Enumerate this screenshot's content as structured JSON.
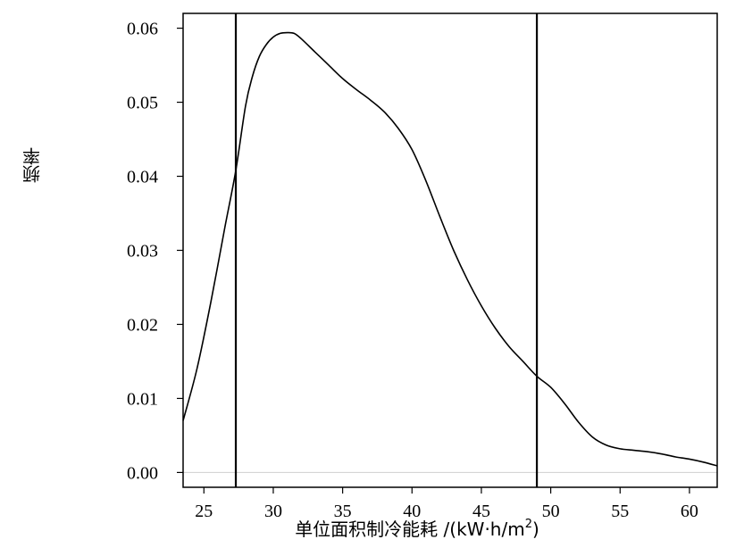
{
  "chart_data": {
    "type": "line",
    "xlabel": "单位面积制冷能耗 /(kW·h/m",
    "xlabel_sup": "2",
    "xlabel_close": ")",
    "ylabel": "频率",
    "xlim": [
      23.5,
      62
    ],
    "ylim": [
      -0.002,
      0.062
    ],
    "x_ticks": [
      25,
      30,
      35,
      40,
      45,
      50,
      55,
      60
    ],
    "y_ticks": [
      0.0,
      0.01,
      0.02,
      0.03,
      0.04,
      0.05,
      0.06
    ],
    "y_tick_labels": [
      "0.00",
      "0.01",
      "0.02",
      "0.03",
      "0.04",
      "0.05",
      "0.06"
    ],
    "zero_line": 0,
    "vertical_lines": [
      27.3,
      49.0
    ],
    "series": [
      {
        "x": [
          23.5,
          24.5,
          25.5,
          26.5,
          27.3,
          28.0,
          28.5,
          29.0,
          29.5,
          30.0,
          30.5,
          31.0,
          31.5,
          32.0,
          33.0,
          34.0,
          35.0,
          36.0,
          37.0,
          38.0,
          39.0,
          40.0,
          41.0,
          42.0,
          43.0,
          44.0,
          45.0,
          46.0,
          47.0,
          48.0,
          49.0,
          50.0,
          51.0,
          52.0,
          53.0,
          54.0,
          55.0,
          56.0,
          57.0,
          58.0,
          59.0,
          60.0,
          61.0,
          62.0
        ],
        "y": [
          0.007,
          0.014,
          0.023,
          0.033,
          0.0408,
          0.0495,
          0.0535,
          0.0562,
          0.0578,
          0.0588,
          0.0593,
          0.0594,
          0.0593,
          0.0586,
          0.0568,
          0.055,
          0.0532,
          0.0517,
          0.0503,
          0.0487,
          0.0465,
          0.0436,
          0.0394,
          0.0346,
          0.03,
          0.026,
          0.0225,
          0.0195,
          0.017,
          0.015,
          0.013,
          0.0115,
          0.0093,
          0.0068,
          0.0048,
          0.0037,
          0.0032,
          0.003,
          0.0028,
          0.0025,
          0.0021,
          0.0018,
          0.0014,
          0.0009
        ]
      }
    ]
  }
}
